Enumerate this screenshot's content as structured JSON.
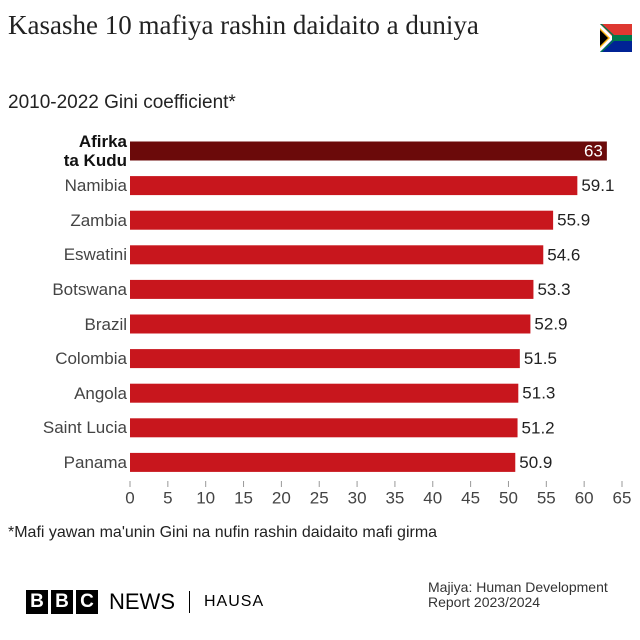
{
  "chart_data": {
    "type": "bar",
    "orientation": "horizontal",
    "title": "Kasashe 10 mafiya rashin daidaito a duniya",
    "subtitle": "2010-2022 Gini coefficient*",
    "categories": [
      "Afirka ta Kudu",
      "Namibia",
      "Zambia",
      "Eswatini",
      "Botswana",
      "Brazil",
      "Colombia",
      "Angola",
      "Saint Lucia",
      "Panama"
    ],
    "values": [
      63,
      59.1,
      55.9,
      54.6,
      53.3,
      52.9,
      51.5,
      51.3,
      51.2,
      50.9
    ],
    "colors": [
      "#6b0a0a",
      "#c8161d",
      "#c8161d",
      "#c8161d",
      "#c8161d",
      "#c8161d",
      "#c8161d",
      "#c8161d",
      "#c8161d",
      "#c8161d"
    ],
    "xlim": [
      0,
      65
    ],
    "xticks": [
      0,
      5,
      10,
      15,
      20,
      25,
      30,
      35,
      40,
      45,
      50,
      55,
      60,
      65
    ],
    "footnote": "*Mafi yawan ma'unin Gini na nufin rashin daidaito mafi girma",
    "source": "Majiya: Human Development Report 2023/2024"
  },
  "logo": {
    "bbc": [
      "B",
      "B",
      "C"
    ],
    "news": "NEWS",
    "service": "HAUSA"
  }
}
